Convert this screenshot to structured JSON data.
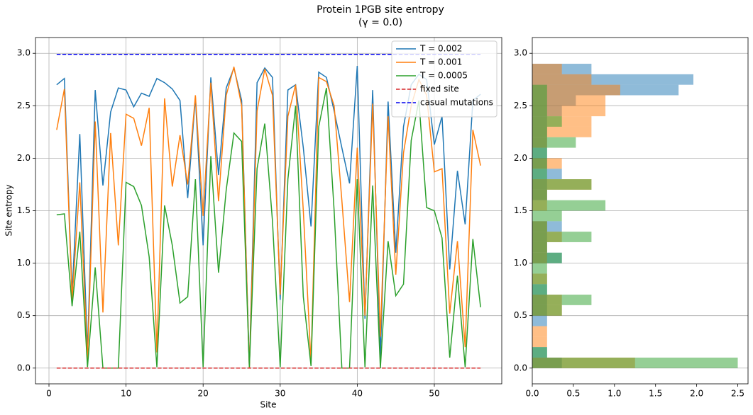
{
  "chart_data": [
    {
      "type": "line",
      "title": "Protein 1PGB site entropy",
      "subtitle": "(γ = 0.0)",
      "xlabel": "Site",
      "ylabel": "Site entropy",
      "x": [
        1,
        2,
        3,
        4,
        5,
        6,
        7,
        8,
        9,
        10,
        11,
        12,
        13,
        14,
        15,
        16,
        17,
        18,
        19,
        20,
        21,
        22,
        23,
        24,
        25,
        26,
        27,
        28,
        29,
        30,
        31,
        32,
        33,
        34,
        35,
        36,
        37,
        38,
        39,
        40,
        41,
        42,
        43,
        44,
        45,
        46,
        47,
        48,
        49,
        50,
        51,
        52,
        53,
        54,
        55,
        56
      ],
      "series": [
        {
          "name": "T = 0.002",
          "color": "#1f77b4",
          "values": [
            2.7,
            2.76,
            0.7,
            2.23,
            0.15,
            2.65,
            1.74,
            2.44,
            2.67,
            2.65,
            2.49,
            2.62,
            2.59,
            2.76,
            2.72,
            2.66,
            2.55,
            1.62,
            2.58,
            1.17,
            2.77,
            1.84,
            2.67,
            2.86,
            2.55,
            0.0,
            2.72,
            2.86,
            2.77,
            0.65,
            2.65,
            2.7,
            2.1,
            1.35,
            2.82,
            2.77,
            2.45,
            2.1,
            1.76,
            2.88,
            0.47,
            2.65,
            0.1,
            2.54,
            1.1,
            2.3,
            2.7,
            2.8,
            2.75,
            2.13,
            2.4,
            0.94,
            1.88,
            1.37,
            2.55,
            2.61
          ]
        },
        {
          "name": "T = 0.001",
          "color": "#ff7f0e",
          "values": [
            2.27,
            2.66,
            0.65,
            1.77,
            0.08,
            2.35,
            0.53,
            2.24,
            1.17,
            2.42,
            2.38,
            2.12,
            2.48,
            0.15,
            2.57,
            1.73,
            2.22,
            1.75,
            2.6,
            1.45,
            2.72,
            1.59,
            2.6,
            2.87,
            2.5,
            0.0,
            2.45,
            2.85,
            2.6,
            0.7,
            2.4,
            2.7,
            1.5,
            0.05,
            2.77,
            2.73,
            2.5,
            1.6,
            0.63,
            2.1,
            0.5,
            2.52,
            0.3,
            2.4,
            0.89,
            2.05,
            2.5,
            2.75,
            2.6,
            1.87,
            1.9,
            0.52,
            1.21,
            0.2,
            2.27,
            1.93
          ]
        },
        {
          "name": "T = 0.0005",
          "color": "#2ca02c",
          "values": [
            1.46,
            1.47,
            0.59,
            1.3,
            0.01,
            0.96,
            0.0,
            0.0,
            0.0,
            1.77,
            1.73,
            1.55,
            1.06,
            0.01,
            1.55,
            1.17,
            0.62,
            0.68,
            1.8,
            0.01,
            2.02,
            0.91,
            1.7,
            2.24,
            2.16,
            0.01,
            1.9,
            2.33,
            1.4,
            0.01,
            1.8,
            2.5,
            0.68,
            0.02,
            2.3,
            2.67,
            1.5,
            0.0,
            0.0,
            1.8,
            0.01,
            1.74,
            0.0,
            1.21,
            0.69,
            0.8,
            2.17,
            2.55,
            1.53,
            1.5,
            1.24,
            0.1,
            0.88,
            0.01,
            1.23,
            0.58
          ]
        }
      ],
      "reference_lines": [
        {
          "name": "fixed site",
          "color": "#d62728",
          "value": 0,
          "xrange": [
            1,
            56
          ]
        },
        {
          "name": "casual mutations",
          "color": "#0000ee",
          "value": 2.99,
          "xrange": [
            1,
            56
          ]
        }
      ],
      "xlim": [
        -1.75,
        58.75
      ],
      "xticks": [
        0,
        10,
        20,
        30,
        40,
        50
      ],
      "ylim": [
        -0.15,
        3.15
      ],
      "yticks": [
        {
          "value": 0,
          "label": "0.0"
        },
        {
          "value": 0.5,
          "label": "0.5"
        },
        {
          "value": 1,
          "label": "1.0"
        },
        {
          "value": 1.5,
          "label": "1.5"
        },
        {
          "value": 2,
          "label": "2.0"
        },
        {
          "value": 2.5,
          "label": "2.5"
        },
        {
          "value": 3,
          "label": "3.0"
        }
      ],
      "grid": true,
      "legend": "upper right"
    },
    {
      "type": "histogram",
      "orientation": "horizontal",
      "opacity": 0.5,
      "bins": [
        0,
        0.1,
        0.2,
        0.3,
        0.4,
        0.5,
        0.6,
        0.7,
        0.8,
        0.9,
        1.0,
        1.1,
        1.2,
        1.3,
        1.4,
        1.5,
        1.6,
        1.7,
        1.8,
        1.9,
        2.0,
        2.1,
        2.2,
        2.3,
        2.4,
        2.5,
        2.6,
        2.7,
        2.8,
        2.9
      ],
      "series": [
        {
          "color": "#1f77b4",
          "values": [
            0.36,
            0.18,
            0,
            0,
            0.18,
            0.18,
            0.18,
            0.18,
            0,
            0,
            0.36,
            0.18,
            0.18,
            0.36,
            0,
            0,
            0.18,
            0.18,
            0.36,
            0.18,
            0.18,
            0.18,
            0.18,
            0.18,
            0.36,
            0.53,
            1.78,
            1.96,
            0.72
          ]
        },
        {
          "color": "#ff7f0e",
          "values": [
            1.25,
            0,
            0.18,
            0.18,
            0,
            0.36,
            0.36,
            0,
            0.18,
            0,
            0.18,
            0.18,
            0.36,
            0.18,
            0,
            0.18,
            0.18,
            0.72,
            0,
            0.36,
            0,
            0.18,
            0.72,
            0.72,
            0.89,
            0.89,
            1.07,
            0.72,
            0.36
          ]
        },
        {
          "color": "#2ca02c",
          "values": [
            2.5,
            0.18,
            0,
            0,
            0,
            0.36,
            0.72,
            0.18,
            0.18,
            0.18,
            0.36,
            0.18,
            0.72,
            0.18,
            0.36,
            0.89,
            0.18,
            0.72,
            0.18,
            0.18,
            0.18,
            0.53,
            0.18,
            0.36,
            0.18,
            0.18,
            0.18,
            0,
            0
          ]
        }
      ],
      "xlim": [
        0,
        2.625
      ],
      "xticks": [
        {
          "value": 0,
          "label": "0.0"
        },
        {
          "value": 0.5,
          "label": "0.5"
        },
        {
          "value": 1,
          "label": "1.0"
        },
        {
          "value": 1.5,
          "label": "1.5"
        },
        {
          "value": 2,
          "label": "2.0"
        },
        {
          "value": 2.5,
          "label": "2.5"
        }
      ],
      "ylim": [
        -0.15,
        3.15
      ],
      "yticks": [
        {
          "value": 0,
          "label": "0.0"
        },
        {
          "value": 0.5,
          "label": "0.5"
        },
        {
          "value": 1,
          "label": "1.0"
        },
        {
          "value": 1.5,
          "label": "1.5"
        },
        {
          "value": 2,
          "label": "2.0"
        },
        {
          "value": 2.5,
          "label": "2.5"
        },
        {
          "value": 3,
          "label": "3.0"
        }
      ],
      "grid": true
    }
  ]
}
